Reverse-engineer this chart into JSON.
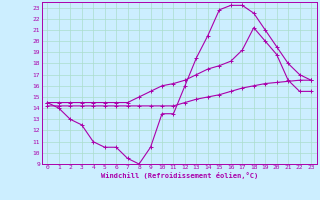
{
  "xlabel": "Windchill (Refroidissement éolien,°C)",
  "ylabel": "",
  "bg_color": "#cceeff",
  "grid_color": "#aaddcc",
  "line_color": "#aa00aa",
  "xlim": [
    -0.5,
    23.5
  ],
  "ylim": [
    9,
    23.5
  ],
  "xticks": [
    0,
    1,
    2,
    3,
    4,
    5,
    6,
    7,
    8,
    9,
    10,
    11,
    12,
    13,
    14,
    15,
    16,
    17,
    18,
    19,
    20,
    21,
    22,
    23
  ],
  "yticks": [
    9,
    10,
    11,
    12,
    13,
    14,
    15,
    16,
    17,
    18,
    19,
    20,
    21,
    22,
    23
  ],
  "line1_x": [
    0,
    1,
    2,
    3,
    4,
    5,
    6,
    7,
    8,
    9,
    10,
    11,
    12,
    13,
    14,
    15,
    16,
    17,
    18,
    19,
    20,
    21,
    22,
    23
  ],
  "line1_y": [
    14.5,
    14.0,
    13.0,
    12.5,
    11.0,
    10.5,
    10.5,
    9.5,
    9.0,
    10.5,
    13.5,
    13.5,
    16.0,
    18.5,
    20.5,
    22.8,
    23.2,
    23.2,
    22.5,
    21.0,
    19.5,
    18.0,
    17.0,
    16.5
  ],
  "line2_x": [
    0,
    1,
    2,
    3,
    4,
    5,
    6,
    7,
    8,
    9,
    10,
    11,
    12,
    13,
    14,
    15,
    16,
    17,
    18,
    19,
    20,
    21,
    22,
    23
  ],
  "line2_y": [
    14.2,
    14.2,
    14.2,
    14.2,
    14.2,
    14.2,
    14.2,
    14.2,
    14.2,
    14.2,
    14.2,
    14.2,
    14.5,
    14.8,
    15.0,
    15.2,
    15.5,
    15.8,
    16.0,
    16.2,
    16.3,
    16.4,
    16.5,
    16.5
  ],
  "line3_x": [
    0,
    1,
    2,
    3,
    4,
    5,
    6,
    7,
    8,
    9,
    10,
    11,
    12,
    13,
    14,
    15,
    16,
    17,
    18,
    19,
    20,
    21,
    22,
    23
  ],
  "line3_y": [
    14.5,
    14.5,
    14.5,
    14.5,
    14.5,
    14.5,
    14.5,
    14.5,
    15.0,
    15.5,
    16.0,
    16.2,
    16.5,
    17.0,
    17.5,
    17.8,
    18.2,
    19.2,
    21.2,
    20.0,
    18.8,
    16.5,
    15.5,
    15.5
  ]
}
